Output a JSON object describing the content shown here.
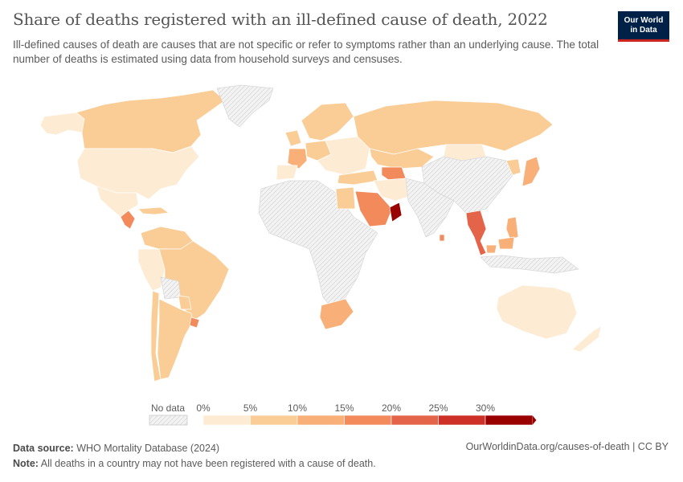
{
  "header": {
    "title": "Share of deaths registered with an ill-defined cause of death, 2022",
    "subtitle": "Ill-defined causes of death are causes that are not specific or refer to symptoms rather than an underlying cause. The total number of deaths is estimated using data from household surveys and censuses."
  },
  "logo": {
    "line1": "Our World",
    "line2": "in Data",
    "bg_color": "#002147",
    "accent_color": "#ce261e"
  },
  "legend": {
    "no_data_label": "No data",
    "bins": [
      {
        "label": "0%",
        "color": "#fdebd3"
      },
      {
        "label": "5%",
        "color": "#fbcd96"
      },
      {
        "label": "10%",
        "color": "#f8b078"
      },
      {
        "label": "15%",
        "color": "#f28a5c"
      },
      {
        "label": "20%",
        "color": "#e4644a"
      },
      {
        "label": "25%",
        "color": "#cc3027"
      },
      {
        "label": "30%",
        "color": "#990000"
      }
    ]
  },
  "footer": {
    "source_label": "Data source:",
    "source_text": "WHO Mortality Database (2024)",
    "note_label": "Note:",
    "note_text": "All deaths in a country may not have been registered with a cause of death.",
    "url": "OurWorldinData.org/causes-of-death | CC BY"
  },
  "map_regions": [
    {
      "name": "canada",
      "color": "#fbcd96"
    },
    {
      "name": "alaska",
      "color": "#fdebd3"
    },
    {
      "name": "greenland",
      "color": "nodata"
    },
    {
      "name": "usa",
      "color": "#fdebd3"
    },
    {
      "name": "mexico",
      "color": "#fdebd3"
    },
    {
      "name": "central-america",
      "color": "#f28a5c"
    },
    {
      "name": "caribbean",
      "color": "#fbcd96"
    },
    {
      "name": "colombia-venezuela",
      "color": "#fbcd96"
    },
    {
      "name": "peru-ecuador",
      "color": "#fdebd3"
    },
    {
      "name": "brazil",
      "color": "#fbcd96"
    },
    {
      "name": "bolivia",
      "color": "nodata"
    },
    {
      "name": "paraguay",
      "color": "#fbcd96"
    },
    {
      "name": "chile",
      "color": "#fbcd96"
    },
    {
      "name": "argentina",
      "color": "#fbcd96"
    },
    {
      "name": "uruguay",
      "color": "#f28a5c"
    },
    {
      "name": "western-europe",
      "color": "#fbcd96"
    },
    {
      "name": "france",
      "color": "#f8b078"
    },
    {
      "name": "iberia",
      "color": "#fdebd3"
    },
    {
      "name": "eastern-europe",
      "color": "#fdebd3"
    },
    {
      "name": "scandinavia",
      "color": "#fbcd96"
    },
    {
      "name": "russia",
      "color": "#fbcd96"
    },
    {
      "name": "kazakhstan",
      "color": "#fbcd96"
    },
    {
      "name": "mongolia",
      "color": "#fdebd3"
    },
    {
      "name": "china",
      "color": "nodata"
    },
    {
      "name": "japan",
      "color": "#f8b078"
    },
    {
      "name": "korea",
      "color": "#fbcd96"
    },
    {
      "name": "turkey",
      "color": "#fbcd96"
    },
    {
      "name": "turkmenistan",
      "color": "#f28a5c"
    },
    {
      "name": "iran",
      "color": "#fdebd3"
    },
    {
      "name": "saudi-arabia",
      "color": "#f28a5c"
    },
    {
      "name": "oman",
      "color": "#990000"
    },
    {
      "name": "egypt",
      "color": "#fbcd96"
    },
    {
      "name": "africa",
      "color": "nodata"
    },
    {
      "name": "south-africa",
      "color": "#f8b078"
    },
    {
      "name": "south-asia",
      "color": "nodata"
    },
    {
      "name": "thailand",
      "color": "#e4644a"
    },
    {
      "name": "malaysia",
      "color": "#f8b078"
    },
    {
      "name": "philippines",
      "color": "#f8b078"
    },
    {
      "name": "indonesia",
      "color": "nodata"
    },
    {
      "name": "sri-lanka",
      "color": "#f28a5c"
    },
    {
      "name": "australia",
      "color": "#fdebd3"
    },
    {
      "name": "new-zealand",
      "color": "#fdebd3"
    }
  ]
}
